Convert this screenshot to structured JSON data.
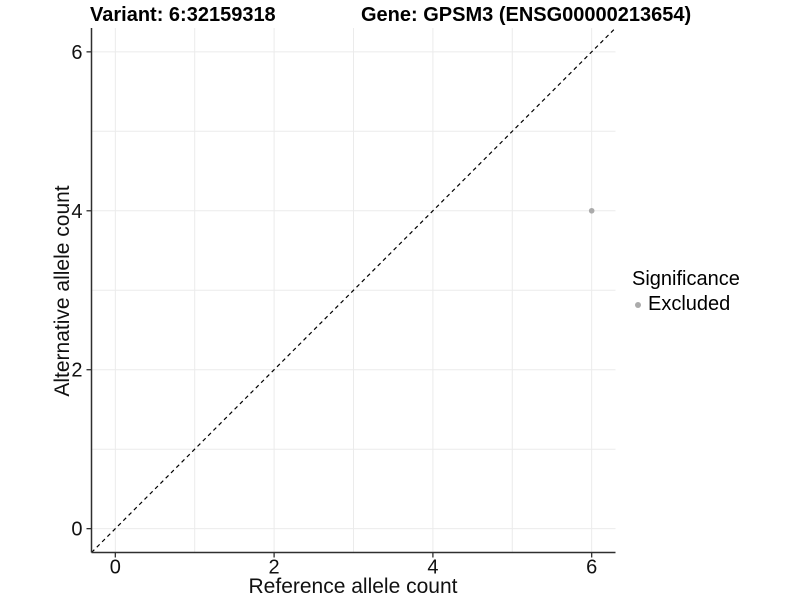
{
  "chart_data": {
    "type": "scatter",
    "titles": [
      "Variant: 6:32159318",
      "Gene: GPSM3 (ENSG00000213654)"
    ],
    "xlabel": "Reference allele count",
    "ylabel": "Alternative allele count",
    "xlim": [
      -0.3,
      6.3
    ],
    "ylim": [
      -0.3,
      6.3
    ],
    "x_ticks": [
      0,
      2,
      4,
      6
    ],
    "y_ticks": [
      0,
      2,
      4,
      6
    ],
    "x_gridlines": [
      0,
      1,
      2,
      3,
      4,
      5,
      6
    ],
    "y_gridlines": [
      0,
      1,
      2,
      3,
      4,
      5,
      6
    ],
    "grid": true,
    "series": [
      {
        "name": "Excluded",
        "color": "#ababab",
        "points": [
          {
            "x": 6,
            "y": 4
          }
        ]
      }
    ],
    "reference_line": {
      "equation": "y = x",
      "style": "dashed",
      "color": "#000000"
    },
    "legend": {
      "position": "right",
      "title": "Significance",
      "entries": [
        {
          "label": "Excluded",
          "color": "#ababab"
        }
      ]
    },
    "style": {
      "background": "#ffffff",
      "grid_color": "#ebebeb",
      "axis_color": "#2f2f2f",
      "tick_label_color": "#111111"
    }
  }
}
